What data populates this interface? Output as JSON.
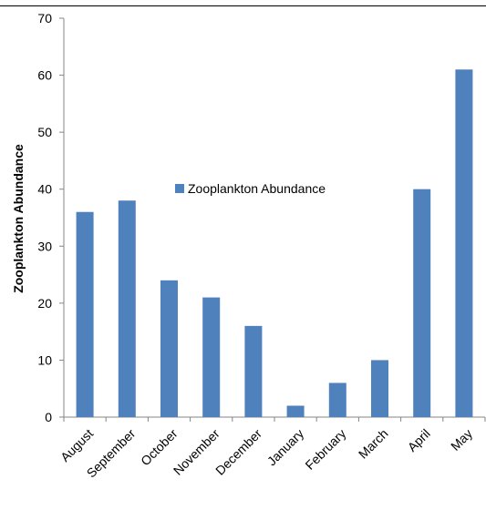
{
  "chart_data": {
    "type": "bar",
    "title": "",
    "xlabel": "",
    "ylabel": "Zooplankton Abundance",
    "categories": [
      "August",
      "September",
      "October",
      "November",
      "December",
      "January",
      "February",
      "March",
      "April",
      "May"
    ],
    "series": [
      {
        "name": "Zooplankton Abundance",
        "values": [
          36,
          38,
          24,
          21,
          16,
          2,
          6,
          10,
          40,
          61
        ]
      }
    ],
    "ylim": [
      0,
      70
    ],
    "yticks": [
      0,
      10,
      20,
      30,
      40,
      50,
      60,
      70
    ],
    "grid": false,
    "legend": {
      "position": "center"
    },
    "colors": {
      "bar": "#4f81bd",
      "axis": "#868686",
      "text": "#000000"
    }
  }
}
